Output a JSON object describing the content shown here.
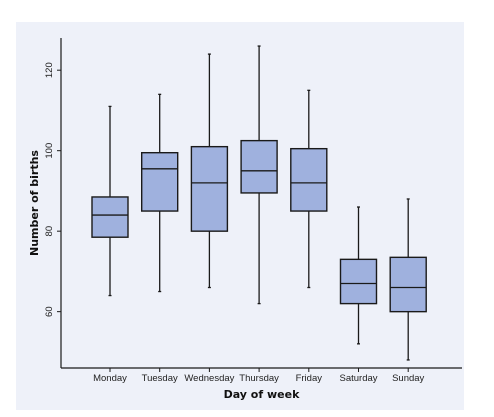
{
  "chart_data": {
    "type": "boxplot",
    "title": "",
    "xlabel": "Day of week",
    "ylabel": "Number of births",
    "ylim": [
      46,
      128
    ],
    "yticks": [
      60,
      80,
      100,
      120
    ],
    "grid": false,
    "legend": "none",
    "categories": [
      "Monday",
      "Tuesday",
      "Wednesday",
      "Thursday",
      "Friday",
      "Saturday",
      "Sunday"
    ],
    "boxes": [
      {
        "min": 64,
        "q1": 78.5,
        "median": 84,
        "q3": 88.5,
        "max": 111
      },
      {
        "min": 65,
        "q1": 85,
        "median": 95.5,
        "q3": 99.5,
        "max": 114
      },
      {
        "min": 66,
        "q1": 80,
        "median": 92,
        "q3": 101,
        "max": 124
      },
      {
        "min": 62,
        "q1": 89.5,
        "median": 95,
        "q3": 102.5,
        "max": 126
      },
      {
        "min": 66,
        "q1": 85,
        "median": 92,
        "q3": 100.5,
        "max": 115
      },
      {
        "min": 52,
        "q1": 62,
        "median": 67,
        "q3": 73,
        "max": 86
      },
      {
        "min": 48,
        "q1": 60,
        "median": 66,
        "q3": 73.5,
        "max": 88
      }
    ],
    "colors": {
      "box_fill": "#9fb1de",
      "box_stroke": "#1a1a1a",
      "axis": "#1a1a1a",
      "panel_background": "#eef1f9"
    }
  }
}
